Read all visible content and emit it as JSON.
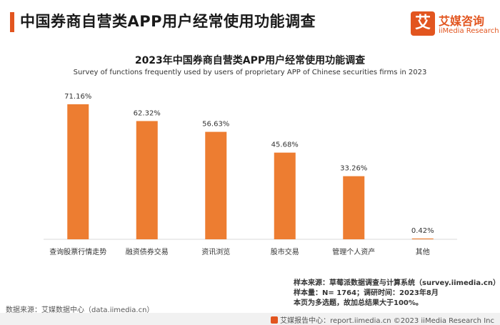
{
  "header": {
    "title": "中国券商自营类APP用户经常使用功能调查",
    "logo_mark": "艾",
    "logo_cn": "艾媒咨询",
    "logo_en": "iiMedia Research"
  },
  "chart_data": {
    "type": "bar",
    "title": "2023年中国券商自营类APP用户经常使用功能调查",
    "subtitle": "Survey of functions frequently used by users of proprietary APP of Chinese securities firms in 2023",
    "categories": [
      "查询股票行情走势",
      "融资债券交易",
      "资讯浏览",
      "股市交易",
      "管理个人资产",
      "其他"
    ],
    "values": [
      71.16,
      62.32,
      56.63,
      45.68,
      33.26,
      0.42
    ],
    "value_labels": [
      "71.16%",
      "62.32%",
      "56.63%",
      "45.68%",
      "33.26%",
      "0.42%"
    ],
    "unit": "%",
    "ylim": [
      0,
      80
    ],
    "bar_color": "#ed7d31",
    "grid": false,
    "legend": "none"
  },
  "notes": {
    "sample_source": "样本来源：草莓派数据调查与计算系统（survey.iimedia.cn）",
    "sample_size": "样本量：N= 1764；调研时间：2023年8月",
    "multi_choice": "本页为多选题，故加总结果大于100%。"
  },
  "source": "数据来源：艾媒数据中心（data.iimedia.cn）",
  "footer": "艾媒报告中心：report.iimedia.cn  ©2023  iiMedia Research  Inc",
  "colors": {
    "accent": "#e2551f",
    "bar": "#ed7d31"
  }
}
